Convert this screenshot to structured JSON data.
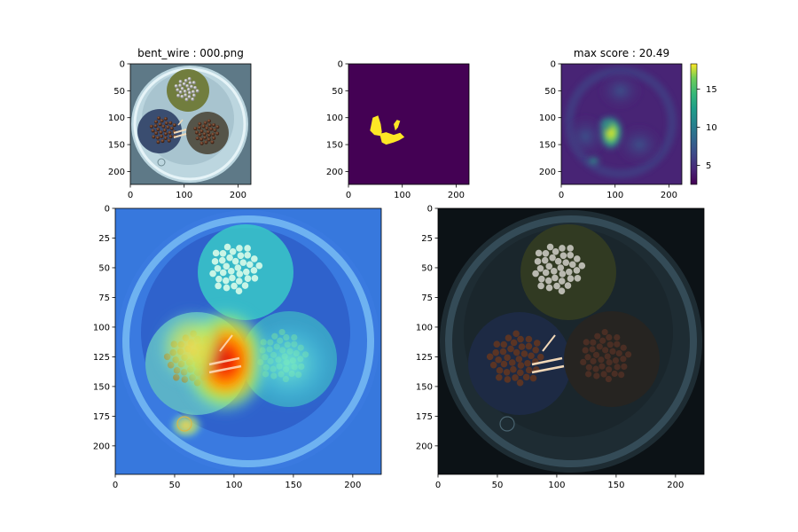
{
  "figure": {
    "titles": {
      "input": "bent_wire : 000.png",
      "mask": "",
      "score": "max score : 20.49",
      "heatmap_overlay": "",
      "segmentation_overlay": ""
    }
  },
  "chart_data": [
    {
      "id": "input",
      "type": "image",
      "title": "bent_wire : 000.png",
      "xlim": [
        0,
        224
      ],
      "ylim": [
        224,
        0
      ],
      "xticks": [
        0,
        100,
        200
      ],
      "yticks": [
        0,
        50,
        100,
        150,
        200
      ],
      "image": {
        "background": "#6f8d9a",
        "shell_color": "#c9e3ec",
        "wires": [
          {
            "name": "top",
            "center": [
              108,
              50
            ],
            "r": 38,
            "color": "#6f7d3c"
          },
          {
            "name": "left",
            "center": [
              72,
              125
            ],
            "r": 40,
            "color": "#3c4f72"
          },
          {
            "name": "right",
            "center": [
              142,
              130
            ],
            "r": 38,
            "color": "#5a5a4e"
          }
        ]
      }
    },
    {
      "id": "mask",
      "type": "heatmap",
      "title": "",
      "xlim": [
        0,
        224
      ],
      "ylim": [
        224,
        0
      ],
      "xticks": [
        0,
        100,
        200
      ],
      "yticks": [
        0,
        50,
        100,
        150,
        200
      ],
      "background": "#440154",
      "foreground": "#fde725",
      "regions": [
        {
          "polygon": [
            [
              45,
              100
            ],
            [
              55,
              96
            ],
            [
              60,
              112
            ],
            [
              62,
              126
            ],
            [
              60,
              134
            ],
            [
              48,
              132
            ],
            [
              40,
              124
            ]
          ]
        },
        {
          "polygon": [
            [
              58,
              130
            ],
            [
              70,
              127
            ],
            [
              84,
              132
            ],
            [
              96,
              128
            ],
            [
              104,
              136
            ],
            [
              94,
              142
            ],
            [
              84,
              146
            ],
            [
              70,
              150
            ],
            [
              62,
              146
            ]
          ]
        },
        {
          "polygon": [
            [
              84,
              112
            ],
            [
              90,
              104
            ],
            [
              96,
              106
            ],
            [
              92,
              118
            ],
            [
              87,
              124
            ]
          ]
        }
      ]
    },
    {
      "id": "score",
      "type": "heatmap",
      "title": "max score : 20.49",
      "xlim": [
        0,
        224
      ],
      "ylim": [
        224,
        0
      ],
      "xticks": [
        0,
        100,
        200
      ],
      "yticks": [
        0,
        50,
        100,
        150,
        200
      ],
      "colormap": "viridis",
      "colorbar": {
        "min": 2.5,
        "max": 18.3,
        "ticks": [
          5,
          10,
          15
        ]
      },
      "base_value": 3.5,
      "hotspots": [
        {
          "x": 92,
          "y": 128,
          "sx": 16,
          "sy": 22,
          "value": 14.5
        },
        {
          "x": 82,
          "y": 112,
          "sx": 10,
          "sy": 10,
          "value": 5
        },
        {
          "x": 60,
          "y": 180,
          "sx": 10,
          "sy": 8,
          "value": 4.5
        },
        {
          "x": 110,
          "y": 50,
          "sx": 26,
          "sy": 22,
          "value": 2.2
        },
        {
          "x": 145,
          "y": 150,
          "sx": 28,
          "sy": 24,
          "value": 1.8
        },
        {
          "x": 45,
          "y": 135,
          "sx": 26,
          "sy": 26,
          "value": 2
        }
      ]
    },
    {
      "id": "heatmap_overlay",
      "type": "heatmap",
      "title": "",
      "xlim": [
        0,
        224
      ],
      "ylim": [
        224,
        0
      ],
      "xticks": [
        0,
        50,
        100,
        150,
        200
      ],
      "yticks": [
        0,
        25,
        50,
        75,
        100,
        125,
        150,
        175,
        200
      ],
      "colormap": "jet"
    },
    {
      "id": "segmentation_overlay",
      "type": "image",
      "title": "",
      "xlim": [
        0,
        224
      ],
      "ylim": [
        224,
        0
      ],
      "xticks": [
        0,
        50,
        100,
        150,
        200
      ],
      "yticks": [
        0,
        25,
        50,
        75,
        100,
        125,
        150,
        175,
        200
      ],
      "background": "#0c1216"
    }
  ]
}
